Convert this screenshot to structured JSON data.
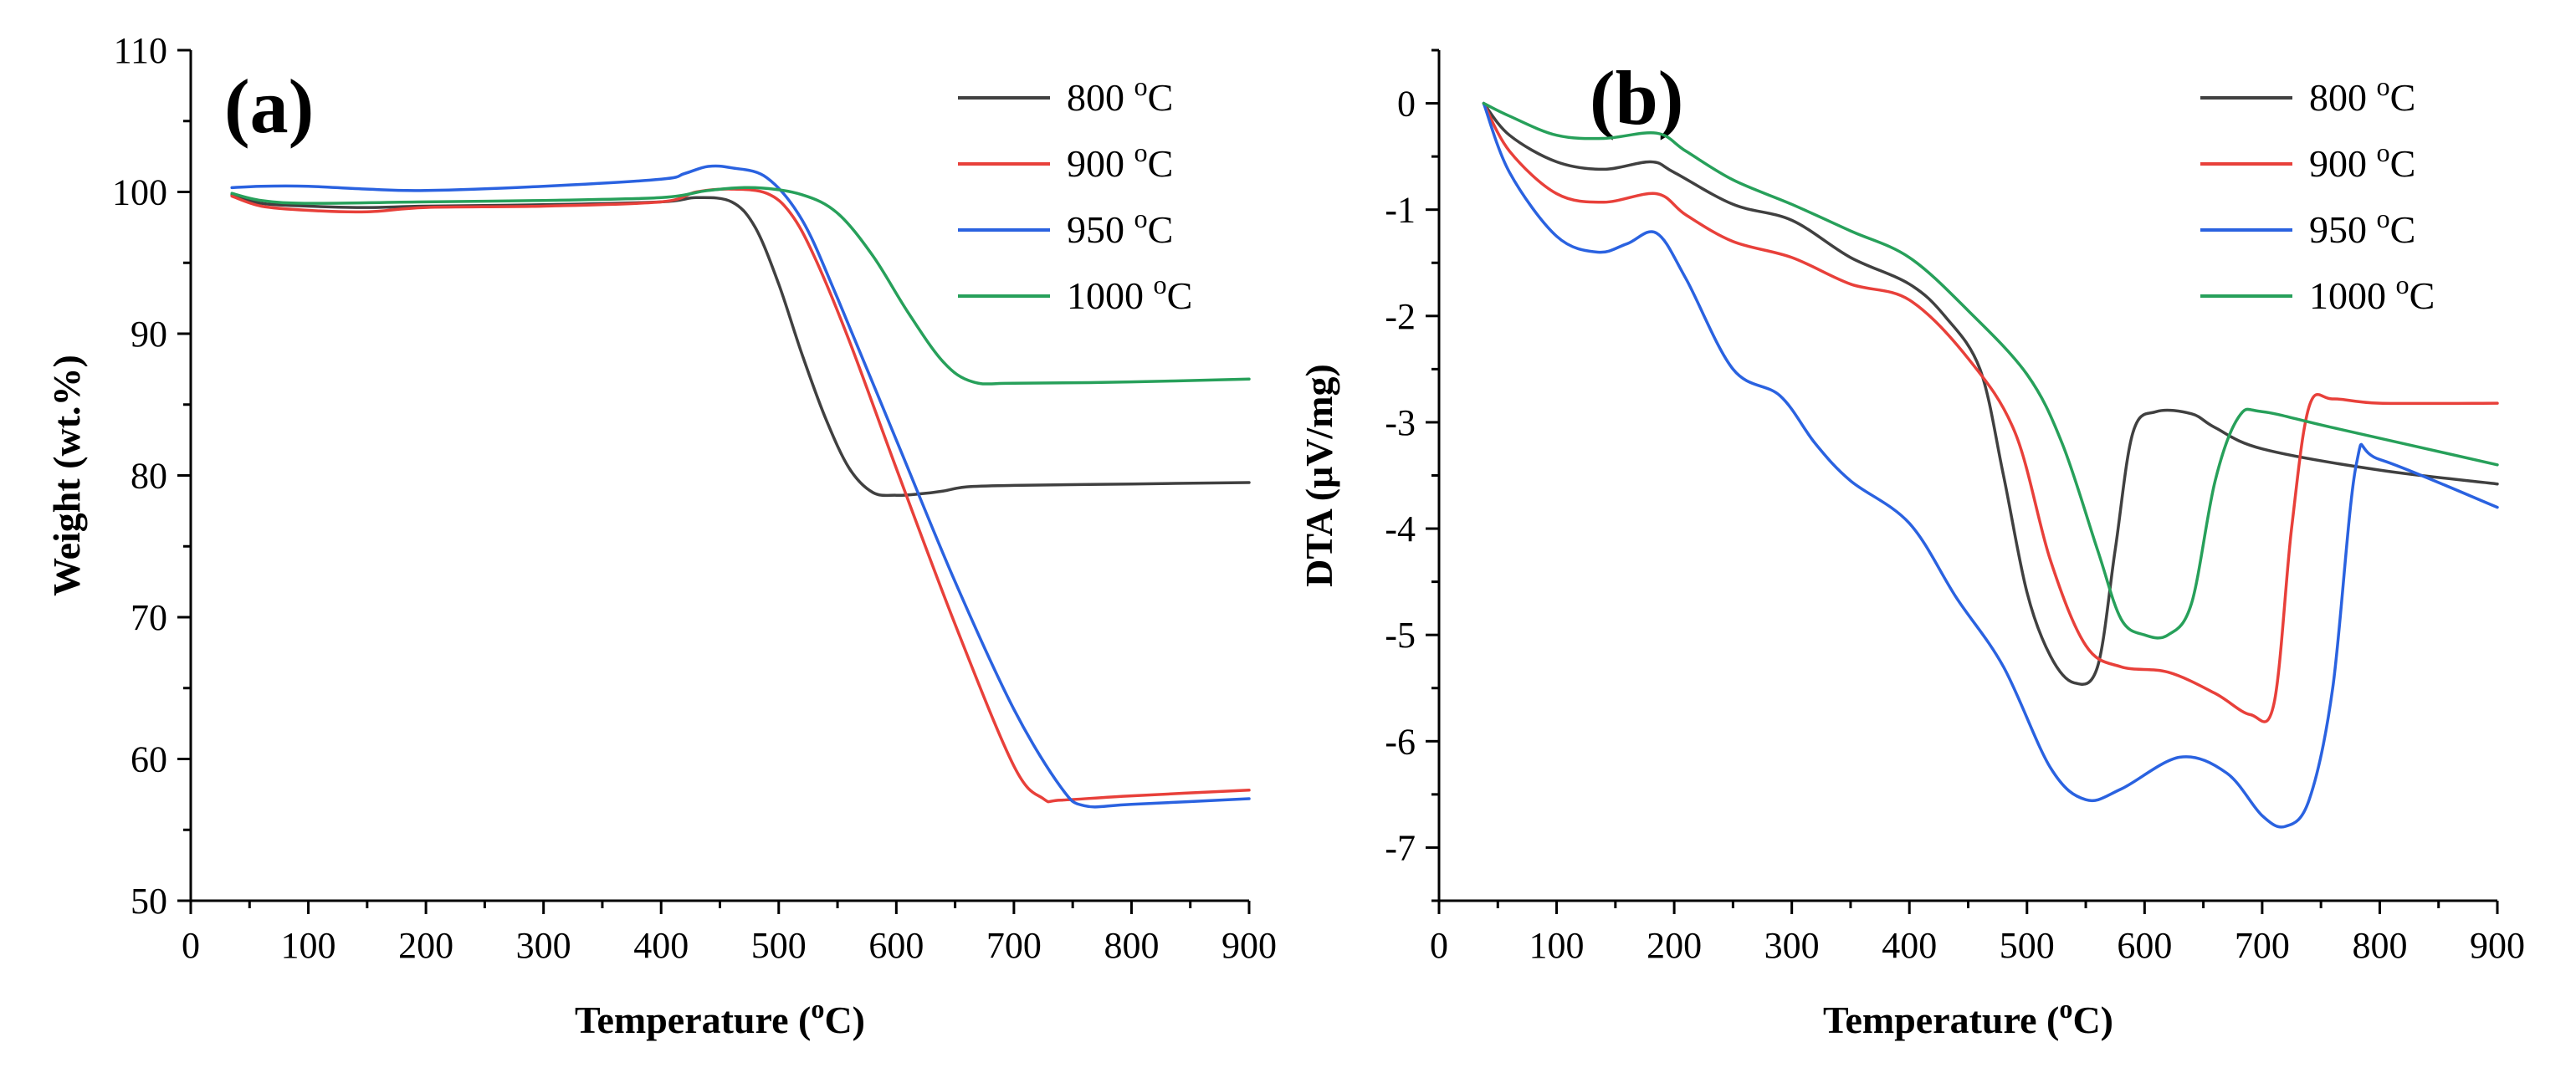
{
  "chart_data": [
    {
      "type": "line",
      "panel_label": "(a)",
      "xlabel": "Temperature (oC)",
      "ylabel": "Weight (wt.%)",
      "xlim": [
        0,
        900
      ],
      "ylim": [
        50,
        110
      ],
      "xticks": [
        0,
        100,
        200,
        300,
        400,
        500,
        600,
        700,
        800,
        900
      ],
      "yticks": [
        50,
        60,
        70,
        80,
        90,
        100,
        110
      ],
      "legend_position": "top-right",
      "series": [
        {
          "name": "800 oC",
          "color": "#404040",
          "x": [
            35,
            60,
            100,
            150,
            200,
            300,
            400,
            430,
            460,
            480,
            500,
            520,
            540,
            560,
            580,
            600,
            620,
            640,
            660,
            700,
            800,
            900
          ],
          "y": [
            99.8,
            99.2,
            99.0,
            98.9,
            99.0,
            99.1,
            99.3,
            99.6,
            99.3,
            97.5,
            93.5,
            88.5,
            84.0,
            80.5,
            78.8,
            78.6,
            78.7,
            78.9,
            79.2,
            79.3,
            79.4,
            79.5
          ]
        },
        {
          "name": "900 oC",
          "color": "#e8403a",
          "x": [
            35,
            60,
            100,
            150,
            200,
            300,
            400,
            430,
            460,
            490,
            510,
            530,
            560,
            600,
            650,
            700,
            725,
            740,
            800,
            900
          ],
          "y": [
            99.7,
            99.0,
            98.7,
            98.6,
            98.9,
            99.0,
            99.3,
            100.0,
            100.2,
            99.9,
            98.5,
            95.5,
            89.5,
            80.5,
            69.5,
            59.5,
            57.2,
            57.1,
            57.4,
            57.8
          ]
        },
        {
          "name": "950 oC",
          "color": "#2a62e0",
          "x": [
            35,
            60,
            100,
            150,
            200,
            300,
            400,
            420,
            440,
            460,
            490,
            520,
            550,
            600,
            650,
            700,
            740,
            760,
            800,
            900
          ],
          "y": [
            100.3,
            100.4,
            100.4,
            100.2,
            100.1,
            100.4,
            100.9,
            101.3,
            101.8,
            101.7,
            101.0,
            98.0,
            92.5,
            82.5,
            72.5,
            63.5,
            58.0,
            56.7,
            56.8,
            57.2
          ]
        },
        {
          "name": "1000 oC",
          "color": "#27a05a",
          "x": [
            35,
            60,
            100,
            200,
            300,
            400,
            440,
            480,
            520,
            550,
            580,
            610,
            640,
            665,
            700,
            800,
            900
          ],
          "y": [
            99.9,
            99.4,
            99.2,
            99.3,
            99.4,
            99.6,
            100.1,
            100.3,
            99.8,
            98.5,
            95.5,
            91.5,
            88.0,
            86.6,
            86.5,
            86.6,
            86.8
          ]
        }
      ]
    },
    {
      "type": "line",
      "panel_label": "(b)",
      "xlabel": "Temperature (oC)",
      "ylabel": "DTA (μV/mg)",
      "xlim": [
        0,
        900
      ],
      "ylim": [
        -7.5,
        0.5
      ],
      "xticks": [
        0,
        100,
        200,
        300,
        400,
        500,
        600,
        700,
        800,
        900
      ],
      "yticks": [
        0,
        -1,
        -2,
        -3,
        -4,
        -5,
        -6,
        -7
      ],
      "legend_position": "top-right",
      "series": [
        {
          "name": "800 oC",
          "color": "#404040",
          "x": [
            38,
            60,
            100,
            140,
            180,
            200,
            250,
            300,
            350,
            400,
            430,
            460,
            480,
            500,
            520,
            540,
            560,
            575,
            590,
            610,
            640,
            660,
            700,
            800,
            900
          ],
          "y": [
            0.0,
            -0.3,
            -0.55,
            -0.62,
            -0.55,
            -0.65,
            -0.95,
            -1.1,
            -1.45,
            -1.7,
            -2.0,
            -2.5,
            -3.5,
            -4.6,
            -5.2,
            -5.45,
            -5.3,
            -4.2,
            -3.1,
            -2.9,
            -2.92,
            -3.05,
            -3.25,
            -3.45,
            -3.58
          ]
        },
        {
          "name": "900 oC",
          "color": "#e8403a",
          "x": [
            38,
            60,
            100,
            140,
            185,
            210,
            250,
            300,
            350,
            400,
            450,
            490,
            520,
            550,
            580,
            620,
            660,
            690,
            710,
            725,
            740,
            760,
            800,
            900
          ],
          "y": [
            0.0,
            -0.45,
            -0.85,
            -0.93,
            -0.85,
            -1.05,
            -1.3,
            -1.45,
            -1.7,
            -1.85,
            -2.4,
            -3.1,
            -4.3,
            -5.1,
            -5.3,
            -5.35,
            -5.55,
            -5.75,
            -5.65,
            -4.0,
            -2.85,
            -2.78,
            -2.82,
            -2.82
          ]
        },
        {
          "name": "950 oC",
          "color": "#2a62e0",
          "x": [
            38,
            60,
            100,
            135,
            160,
            185,
            210,
            250,
            290,
            320,
            350,
            400,
            440,
            480,
            520,
            550,
            580,
            630,
            670,
            700,
            720,
            740,
            760,
            780,
            800,
            900
          ],
          "y": [
            0.0,
            -0.65,
            -1.25,
            -1.4,
            -1.32,
            -1.22,
            -1.65,
            -2.5,
            -2.75,
            -3.2,
            -3.55,
            -3.95,
            -4.65,
            -5.3,
            -6.25,
            -6.55,
            -6.45,
            -6.15,
            -6.3,
            -6.7,
            -6.8,
            -6.55,
            -5.5,
            -3.4,
            -3.35,
            -3.8
          ]
        },
        {
          "name": "1000 oC",
          "color": "#27a05a",
          "x": [
            38,
            60,
            100,
            140,
            185,
            210,
            250,
            300,
            350,
            400,
            450,
            500,
            530,
            560,
            580,
            600,
            620,
            640,
            660,
            680,
            700,
            760,
            900
          ],
          "y": [
            0.0,
            -0.12,
            -0.3,
            -0.33,
            -0.28,
            -0.45,
            -0.72,
            -0.95,
            -1.2,
            -1.45,
            -1.95,
            -2.55,
            -3.2,
            -4.2,
            -4.85,
            -5.0,
            -5.0,
            -4.7,
            -3.55,
            -2.95,
            -2.9,
            -3.05,
            -3.4
          ]
        }
      ]
    }
  ]
}
